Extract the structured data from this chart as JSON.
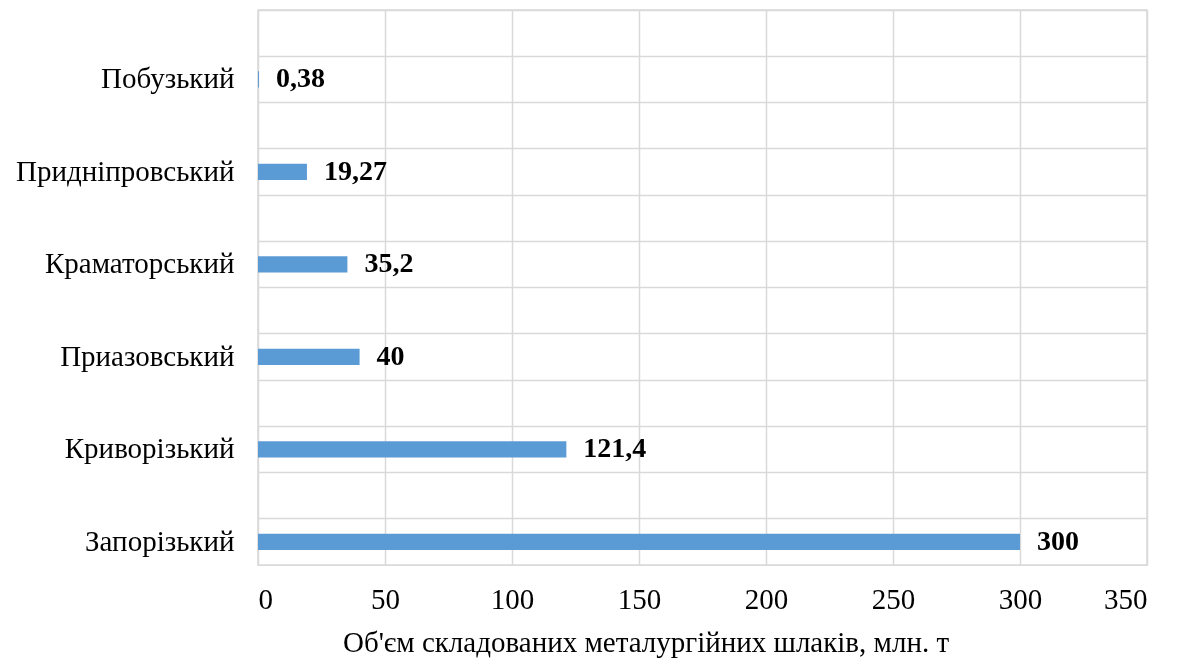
{
  "chart_data": {
    "type": "bar",
    "orientation": "horizontal",
    "xlabel": "Об'єм складованих металургійних шлаків, млн. т",
    "categories": [
      "Побузький",
      "Придніпровський",
      "Краматорський",
      "Приазовський",
      "Криворізький",
      "Запорізький"
    ],
    "values": [
      0.38,
      19.27,
      35.2,
      40,
      121.4,
      300
    ],
    "value_labels": [
      "0,38",
      "19,27",
      "35,2",
      "40",
      "121,4",
      "300"
    ],
    "color": "#5b9bd5",
    "xlim": [
      0,
      350
    ],
    "xticks": [
      0,
      50,
      100,
      150,
      200,
      250,
      300,
      350
    ],
    "grid": true
  }
}
